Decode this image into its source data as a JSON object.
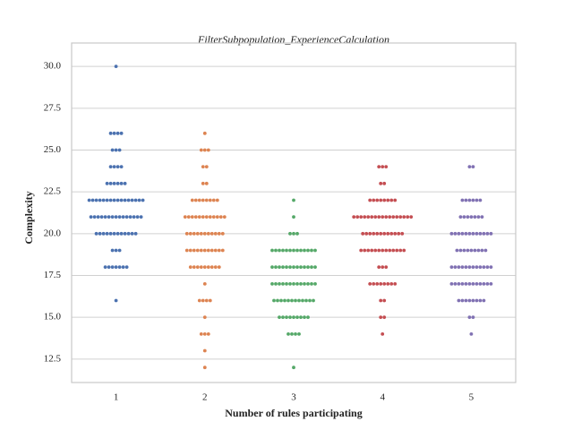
{
  "chart_data": {
    "type": "swarm",
    "title": "FilterSubpopulation_ExperienceCalculation",
    "xlabel": "Number of rules participating",
    "ylabel": "Complexity",
    "categories": [
      "1",
      "2",
      "3",
      "4",
      "5"
    ],
    "colors": [
      "#4c72b0",
      "#dd8452",
      "#55a868",
      "#c44e52",
      "#8172b3"
    ],
    "values": [
      [
        30,
        26,
        26,
        26,
        26,
        25,
        25,
        25,
        24,
        24,
        24,
        24,
        23,
        23,
        23,
        23,
        23,
        23,
        22,
        22,
        22,
        22,
        22,
        22,
        22,
        22,
        22,
        22,
        22,
        22,
        22,
        22,
        22,
        22,
        21,
        21,
        21,
        21,
        21,
        21,
        21,
        21,
        21,
        21,
        21,
        21,
        21,
        21,
        21,
        20,
        20,
        20,
        20,
        20,
        20,
        20,
        20,
        20,
        20,
        20,
        20,
        19,
        19,
        19,
        18,
        18,
        18,
        18,
        18,
        18,
        18,
        16
      ],
      [
        26,
        25,
        25,
        25,
        24,
        24,
        23,
        23,
        22,
        22,
        22,
        22,
        22,
        22,
        22,
        22,
        21,
        21,
        21,
        21,
        21,
        21,
        21,
        21,
        21,
        21,
        21,
        21,
        20,
        20,
        20,
        20,
        20,
        20,
        20,
        20,
        20,
        20,
        20,
        19,
        19,
        19,
        19,
        19,
        19,
        19,
        19,
        19,
        19,
        19,
        18,
        18,
        18,
        18,
        18,
        18,
        18,
        18,
        18,
        17,
        16,
        16,
        16,
        16,
        15,
        14,
        14,
        14,
        13,
        12
      ],
      [
        22,
        21,
        20,
        20,
        20,
        19,
        19,
        19,
        19,
        19,
        19,
        19,
        19,
        19,
        19,
        19,
        19,
        19,
        18,
        18,
        18,
        18,
        18,
        18,
        18,
        18,
        18,
        18,
        18,
        18,
        18,
        17,
        17,
        17,
        17,
        17,
        17,
        17,
        17,
        17,
        17,
        17,
        17,
        17,
        16,
        16,
        16,
        16,
        16,
        16,
        16,
        16,
        16,
        16,
        16,
        16,
        15,
        15,
        15,
        15,
        15,
        15,
        15,
        15,
        15,
        14,
        14,
        14,
        14,
        12
      ],
      [
        24,
        24,
        24,
        23,
        23,
        22,
        22,
        22,
        22,
        22,
        22,
        22,
        22,
        21,
        21,
        21,
        21,
        21,
        21,
        21,
        21,
        21,
        21,
        21,
        21,
        21,
        21,
        21,
        21,
        21,
        20,
        20,
        20,
        20,
        20,
        20,
        20,
        20,
        20,
        20,
        20,
        20,
        19,
        19,
        19,
        19,
        19,
        19,
        19,
        19,
        19,
        19,
        19,
        19,
        19,
        18,
        18,
        18,
        17,
        17,
        17,
        17,
        17,
        17,
        17,
        17,
        16,
        16,
        15,
        15,
        14
      ],
      [
        24,
        24,
        22,
        22,
        22,
        22,
        22,
        22,
        21,
        21,
        21,
        21,
        21,
        21,
        21,
        20,
        20,
        20,
        20,
        20,
        20,
        20,
        20,
        20,
        20,
        20,
        20,
        19,
        19,
        19,
        19,
        19,
        19,
        19,
        19,
        19,
        18,
        18,
        18,
        18,
        18,
        18,
        18,
        18,
        18,
        18,
        18,
        18,
        17,
        17,
        17,
        17,
        17,
        17,
        17,
        17,
        17,
        17,
        17,
        17,
        16,
        16,
        16,
        16,
        16,
        16,
        16,
        16,
        15,
        15,
        14
      ]
    ],
    "ylim": [
      11.1,
      31.4
    ],
    "yticks": [
      12.5,
      {
        "value": 15,
        "label": "15.0"
      },
      17.5,
      {
        "value": 20,
        "label": "20.0"
      },
      22.5,
      {
        "value": 25,
        "label": "25.0"
      },
      27.5,
      {
        "value": 30,
        "label": "30.0"
      }
    ],
    "grid": true
  }
}
